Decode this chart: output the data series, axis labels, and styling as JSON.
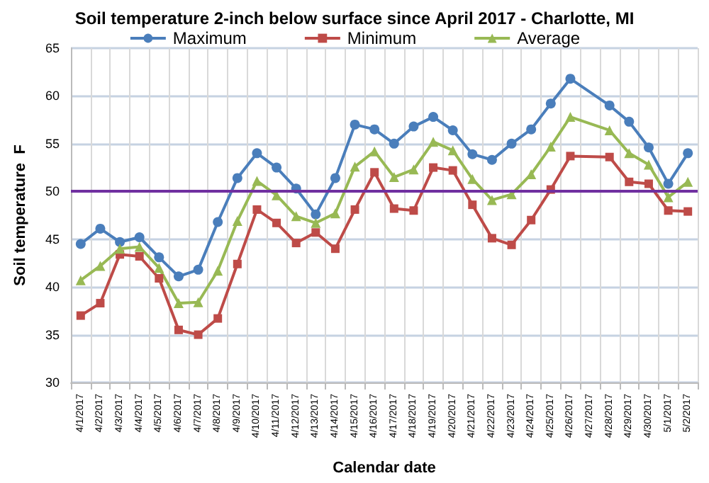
{
  "chart_data": {
    "type": "line",
    "title": "Soil temperature 2-inch below surface since April 2017 - Charlotte, MI",
    "xlabel": "Calendar date",
    "ylabel": "Soil temperature  F",
    "categories": [
      "4/1/2017",
      "4/2/2017",
      "4/3/2017",
      "4/4/2017",
      "4/5/2017",
      "4/6/2017",
      "4/7/2017",
      "4/8/2017",
      "4/9/2017",
      "4/10/2017",
      "4/11/2017",
      "4/12/2017",
      "4/13/2017",
      "4/14/2017",
      "4/15/2017",
      "4/16/2017",
      "4/17/2017",
      "4/18/2017",
      "4/19/2017",
      "4/20/2017",
      "4/21/2017",
      "4/22/2017",
      "4/23/2017",
      "4/24/2017",
      "4/25/2017",
      "4/26/2017",
      "4/27/2017",
      "4/28/2017",
      "4/29/2017",
      "4/30/2017",
      "5/1/2017",
      "5/2/2017"
    ],
    "series": [
      {
        "name": "Maximum",
        "color": "#4a7ebb",
        "marker": "circle",
        "values": [
          44.5,
          46.1,
          44.7,
          45.2,
          43.1,
          41.1,
          41.8,
          46.8,
          51.4,
          54.0,
          52.5,
          50.3,
          47.6,
          51.4,
          57.0,
          56.5,
          55.0,
          56.8,
          57.8,
          56.4,
          53.9,
          53.3,
          55.0,
          56.5,
          59.2,
          61.8,
          null,
          59.0,
          57.3,
          54.6,
          50.8,
          54.0
        ]
      },
      {
        "name": "Minimum",
        "color": "#be4b48",
        "marker": "square",
        "values": [
          37.0,
          38.3,
          43.4,
          43.2,
          40.9,
          35.5,
          35.0,
          36.7,
          42.4,
          48.1,
          46.7,
          44.6,
          45.7,
          44.0,
          48.1,
          52.0,
          48.2,
          48.0,
          52.5,
          52.2,
          48.6,
          45.1,
          44.4,
          47.0,
          50.2,
          53.7,
          null,
          53.6,
          51.0,
          50.8,
          48.0,
          47.9
        ]
      },
      {
        "name": "Average",
        "color": "#98b954",
        "marker": "triangle",
        "values": [
          40.7,
          42.2,
          44.0,
          44.2,
          42.0,
          38.3,
          38.4,
          41.7,
          46.9,
          51.1,
          49.6,
          47.4,
          46.7,
          47.7,
          52.6,
          54.2,
          51.5,
          52.3,
          55.2,
          54.3,
          51.3,
          49.1,
          49.7,
          51.8,
          54.7,
          57.8,
          null,
          56.4,
          54.0,
          52.8,
          49.4,
          51.0
        ]
      }
    ],
    "ylim": [
      30,
      65
    ],
    "yticks": [
      30,
      35,
      40,
      45,
      50,
      55,
      60,
      65
    ],
    "grid": true,
    "legend": "top",
    "ref_lines": [
      {
        "axis": "y",
        "value": 50,
        "color": "#7030a0"
      }
    ]
  }
}
